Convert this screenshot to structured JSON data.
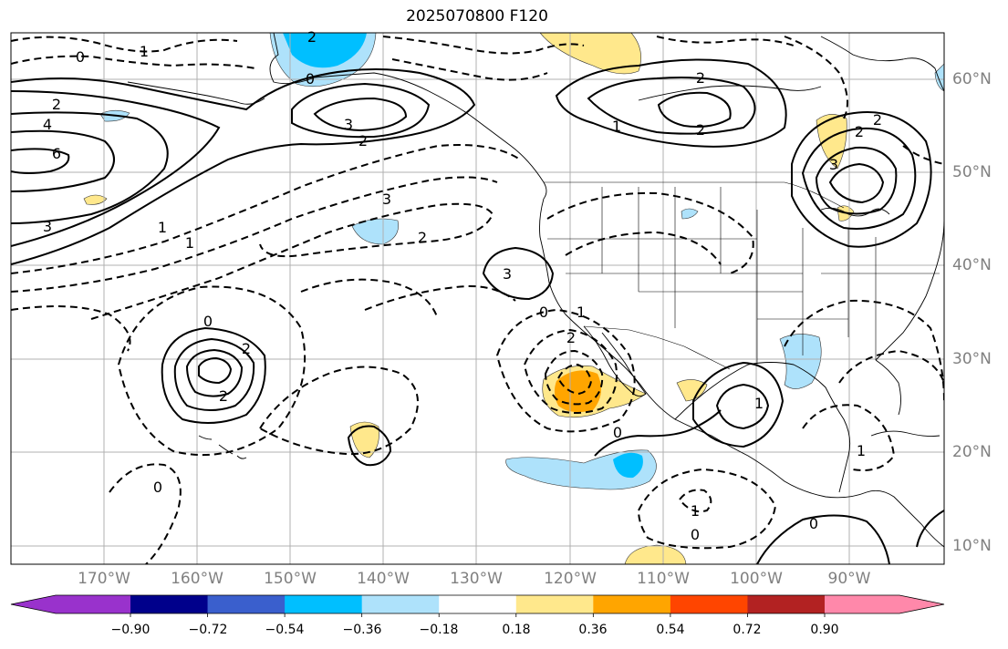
{
  "title": "2025070800 F120",
  "lat_labels": [
    "60°N",
    "50°N",
    "40°N",
    "30°N",
    "20°N",
    "10°N"
  ],
  "lon_labels": [
    "170°W",
    "160°W",
    "150°W",
    "140°W",
    "130°W",
    "120°W",
    "110°W",
    "100°W",
    "90°W"
  ],
  "colorbar": {
    "colors": [
      "#9932cc",
      "#00008b",
      "#3a5fcd",
      "#00bfff",
      "#aee2fb",
      "#ffffff",
      "#ffe88c",
      "#ffa500",
      "#ff4500",
      "#b22222",
      "#ff88aa"
    ],
    "ticks": [
      "−0.90",
      "−0.72",
      "−0.54",
      "−0.36",
      "−0.18",
      "0.18",
      "0.36",
      "0.54",
      "0.72",
      "0.90"
    ]
  },
  "contour_labels": {
    "neg": [
      "1",
      "0",
      "2",
      "0",
      "3",
      "2",
      "1",
      "0",
      "2",
      "0",
      "1",
      "0",
      "0",
      "1",
      "0",
      "1",
      "2",
      "0"
    ],
    "pos": [
      "2",
      "4",
      "6",
      "3",
      "1",
      "3",
      "2",
      "2",
      "1",
      "2",
      "3",
      "2",
      "1",
      "2",
      "3",
      "2"
    ]
  },
  "colors": {
    "light_blue": "#aee2fb",
    "blue": "#00bfff",
    "light_yellow": "#ffe88c",
    "orange": "#ffa500",
    "grid": "#b0b0b0",
    "contour": "#000000"
  }
}
